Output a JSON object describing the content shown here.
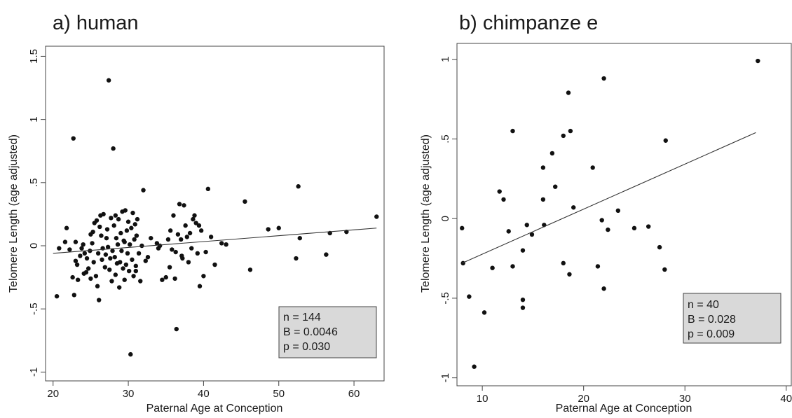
{
  "chart_data": [
    {
      "type": "scatter",
      "title": "a) human",
      "xlabel": "Paternal Age at Conception",
      "ylabel": "Telomere Length (age adjusted)",
      "xlim": [
        19,
        64
      ],
      "ylim": [
        -1.07,
        1.58
      ],
      "xticks": [
        20,
        30,
        40,
        50,
        60
      ],
      "xtick_labels": [
        "20",
        "30",
        "40",
        "50",
        "60"
      ],
      "yticks": [
        -1,
        -0.5,
        0,
        0.5,
        1,
        1.5
      ],
      "ytick_labels": [
        "-1",
        "-.5",
        "0",
        ".5",
        "1",
        "1.5"
      ],
      "grid": false,
      "legend": "bottom-right",
      "fit_line": {
        "x": [
          20,
          63
        ],
        "y": [
          -0.06,
          0.14
        ]
      },
      "stats": [
        "n = 144",
        "B = 0.0046",
        "p = 0.030"
      ],
      "points": [
        [
          20.5,
          -0.4
        ],
        [
          20.8,
          -0.02
        ],
        [
          21.6,
          0.03
        ],
        [
          21.8,
          0.14
        ],
        [
          22.2,
          -0.03
        ],
        [
          22.6,
          -0.25
        ],
        [
          22.8,
          -0.39
        ],
        [
          22.7,
          0.85
        ],
        [
          23.0,
          0.03
        ],
        [
          23.0,
          -0.12
        ],
        [
          23.2,
          -0.15
        ],
        [
          23.3,
          -0.27
        ],
        [
          23.6,
          -0.08
        ],
        [
          23.8,
          -0.02
        ],
        [
          24.0,
          0.01
        ],
        [
          24.2,
          -0.06
        ],
        [
          24.4,
          -0.21
        ],
        [
          24.5,
          -0.1
        ],
        [
          24.7,
          -0.18
        ],
        [
          24.9,
          -0.04
        ],
        [
          25.0,
          -0.26
        ],
        [
          25.2,
          0.02
        ],
        [
          25.3,
          0.11
        ],
        [
          25.4,
          -0.13
        ],
        [
          25.5,
          0.18
        ],
        [
          25.7,
          -0.24
        ],
        [
          25.8,
          0.2
        ],
        [
          25.9,
          -0.32
        ],
        [
          26.0,
          -0.06
        ],
        [
          26.1,
          -0.43
        ],
        [
          26.2,
          0.15
        ],
        [
          26.3,
          0.24
        ],
        [
          26.4,
          0.08
        ],
        [
          26.5,
          -0.11
        ],
        [
          26.6,
          -0.02
        ],
        [
          26.7,
          0.25
        ],
        [
          26.9,
          -0.17
        ],
        [
          27.0,
          -0.07
        ],
        [
          27.1,
          0.06
        ],
        [
          27.2,
          0.13
        ],
        [
          27.3,
          -0.01
        ],
        [
          27.4,
          1.31
        ],
        [
          27.5,
          -0.19
        ],
        [
          27.6,
          -0.1
        ],
        [
          27.7,
          0.22
        ],
        [
          27.8,
          -0.28
        ],
        [
          27.9,
          -0.04
        ],
        [
          28.0,
          0.77
        ],
        [
          28.1,
          0.16
        ],
        [
          28.2,
          -0.09
        ],
        [
          28.3,
          -0.23
        ],
        [
          28.4,
          0.06
        ],
        [
          28.5,
          -0.14
        ],
        [
          28.6,
          0.01
        ],
        [
          28.7,
          0.21
        ],
        [
          28.8,
          -0.33
        ],
        [
          28.9,
          -0.13
        ],
        [
          29.0,
          0.1
        ],
        [
          29.1,
          -0.04
        ],
        [
          29.2,
          0.27
        ],
        [
          29.3,
          -0.18
        ],
        [
          29.4,
          0.04
        ],
        [
          29.5,
          -0.27
        ],
        [
          29.6,
          0.28
        ],
        [
          29.7,
          -0.15
        ],
        [
          29.8,
          0.12
        ],
        [
          29.9,
          -0.06
        ],
        [
          30.0,
          0.19
        ],
        [
          30.1,
          -0.2
        ],
        [
          30.2,
          0.01
        ],
        [
          30.3,
          -0.86
        ],
        [
          30.4,
          0.14
        ],
        [
          30.5,
          -0.11
        ],
        [
          30.6,
          0.26
        ],
        [
          30.7,
          -0.24
        ],
        [
          30.8,
          0.05
        ],
        [
          30.9,
          0.17
        ],
        [
          31.0,
          -0.16
        ],
        [
          31.1,
          0.08
        ],
        [
          31.2,
          0.21
        ],
        [
          31.4,
          -0.06
        ],
        [
          31.6,
          -0.28
        ],
        [
          31.8,
          0.0
        ],
        [
          32.0,
          0.44
        ],
        [
          32.3,
          -0.12
        ],
        [
          32.6,
          -0.09
        ],
        [
          33.0,
          0.06
        ],
        [
          34.0,
          -0.02
        ],
        [
          34.2,
          0.0
        ],
        [
          34.5,
          -0.27
        ],
        [
          35.0,
          -0.25
        ],
        [
          35.3,
          0.05
        ],
        [
          35.6,
          0.12
        ],
        [
          35.8,
          -0.03
        ],
        [
          36.0,
          0.24
        ],
        [
          36.2,
          -0.26
        ],
        [
          36.3,
          -0.05
        ],
        [
          36.4,
          -0.66
        ],
        [
          36.6,
          0.09
        ],
        [
          36.8,
          0.33
        ],
        [
          37.0,
          0.05
        ],
        [
          37.2,
          -0.1
        ],
        [
          37.4,
          0.32
        ],
        [
          37.6,
          0.16
        ],
        [
          37.8,
          0.07
        ],
        [
          38.0,
          -0.13
        ],
        [
          38.2,
          0.1
        ],
        [
          38.4,
          -0.02
        ],
        [
          38.6,
          0.21
        ],
        [
          38.8,
          0.24
        ],
        [
          39.0,
          0.18
        ],
        [
          39.2,
          -0.06
        ],
        [
          39.4,
          0.16
        ],
        [
          39.5,
          -0.32
        ],
        [
          39.7,
          0.12
        ],
        [
          40.0,
          -0.24
        ],
        [
          40.3,
          -0.05
        ],
        [
          40.6,
          0.45
        ],
        [
          41.0,
          0.07
        ],
        [
          41.5,
          -0.15
        ],
        [
          42.4,
          0.02
        ],
        [
          43.0,
          0.01
        ],
        [
          45.5,
          0.35
        ],
        [
          46.2,
          -0.19
        ],
        [
          48.6,
          0.13
        ],
        [
          50.0,
          0.14
        ],
        [
          52.3,
          -0.1
        ],
        [
          52.6,
          0.47
        ],
        [
          52.8,
          0.06
        ],
        [
          56.3,
          -0.07
        ],
        [
          56.8,
          0.1
        ],
        [
          59.0,
          0.11
        ],
        [
          63.0,
          0.23
        ],
        [
          25.0,
          0.09
        ],
        [
          33.8,
          0.02
        ],
        [
          37.1,
          -0.08
        ],
        [
          24.1,
          -0.22
        ],
        [
          29.5,
          0.03
        ],
        [
          31.0,
          -0.2
        ],
        [
          28.3,
          0.24
        ],
        [
          35.5,
          -0.17
        ]
      ]
    },
    {
      "type": "scatter",
      "title": "b) chimpanze e",
      "xlabel": "Paternal Age at Conception",
      "ylabel": "Telomere Length (age adjusted)",
      "xlim": [
        7.5,
        40.5
      ],
      "ylim": [
        -1.05,
        1.1
      ],
      "xticks": [
        10,
        20,
        30,
        40
      ],
      "xtick_labels": [
        "10",
        "20",
        "30",
        "40"
      ],
      "yticks": [
        -1,
        -0.5,
        0,
        0.5,
        1
      ],
      "ytick_labels": [
        "-1",
        "-.5",
        "0",
        ".5",
        "1"
      ],
      "grid": false,
      "legend": "bottom-right",
      "fit_line": {
        "x": [
          8,
          37
        ],
        "y": [
          -0.28,
          0.54
        ]
      },
      "stats": [
        "n = 40",
        "B = 0.028",
        "p = 0.009"
      ],
      "points": [
        [
          8.0,
          -0.06
        ],
        [
          8.1,
          -0.28
        ],
        [
          8.7,
          -0.49
        ],
        [
          9.2,
          -0.93
        ],
        [
          10.2,
          -0.59
        ],
        [
          11.0,
          -0.31
        ],
        [
          11.7,
          0.17
        ],
        [
          12.1,
          0.12
        ],
        [
          12.6,
          -0.08
        ],
        [
          13.0,
          0.55
        ],
        [
          13.0,
          -0.3
        ],
        [
          14.0,
          -0.2
        ],
        [
          14.0,
          -0.51
        ],
        [
          14.0,
          -0.56
        ],
        [
          14.4,
          -0.04
        ],
        [
          14.9,
          -0.1
        ],
        [
          16.0,
          0.32
        ],
        [
          16.0,
          0.12
        ],
        [
          16.1,
          -0.04
        ],
        [
          16.9,
          0.41
        ],
        [
          17.2,
          0.2
        ],
        [
          18.0,
          0.52
        ],
        [
          18.0,
          -0.28
        ],
        [
          18.5,
          0.79
        ],
        [
          18.6,
          -0.35
        ],
        [
          18.7,
          0.55
        ],
        [
          19.0,
          0.07
        ],
        [
          20.9,
          0.32
        ],
        [
          21.4,
          -0.3
        ],
        [
          21.8,
          -0.01
        ],
        [
          22.0,
          0.88
        ],
        [
          22.0,
          -0.44
        ],
        [
          22.4,
          -0.07
        ],
        [
          23.4,
          0.05
        ],
        [
          25.0,
          -0.06
        ],
        [
          26.4,
          -0.05
        ],
        [
          27.5,
          -0.18
        ],
        [
          28.0,
          -0.32
        ],
        [
          28.1,
          0.49
        ],
        [
          37.2,
          0.99
        ]
      ]
    }
  ]
}
